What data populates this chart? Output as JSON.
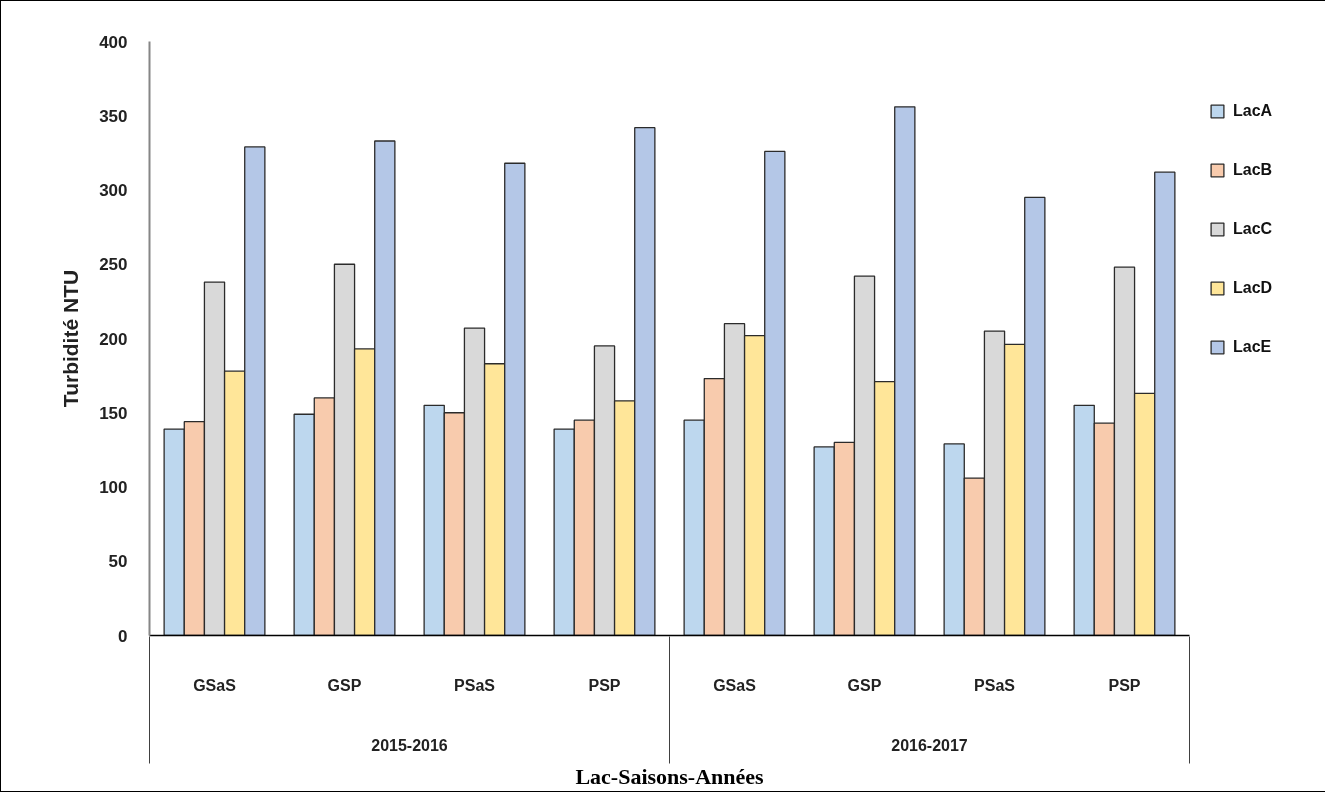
{
  "chart_data": {
    "type": "bar",
    "xlabel": "Lac-Saisons-Années",
    "ylabel": "Turbidité NTU",
    "categories": [
      "GSaS",
      "GSP",
      "PSaS",
      "PSP",
      "GSaS",
      "GSP",
      "PSaS",
      "PSP"
    ],
    "annotations": [
      "2015-2016",
      "2016-2017"
    ],
    "series": [
      {
        "name": "LacA",
        "color": "#bdd7ee",
        "values": [
          139,
          149,
          155,
          139,
          145,
          127,
          129,
          155
        ]
      },
      {
        "name": "LacB",
        "color": "#f8cbad",
        "values": [
          144,
          160,
          150,
          145,
          173,
          130,
          106,
          143
        ]
      },
      {
        "name": "LacC",
        "color": "#d9d9d9",
        "values": [
          238,
          250,
          207,
          195,
          210,
          242,
          205,
          248
        ]
      },
      {
        "name": "LacD",
        "color": "#ffe699",
        "values": [
          178,
          193,
          183,
          158,
          202,
          171,
          196,
          163
        ]
      },
      {
        "name": "LacE",
        "color": "#b4c7e7",
        "values": [
          329,
          333,
          318,
          342,
          326,
          356,
          295,
          312
        ]
      }
    ],
    "ylim": [
      0,
      400
    ],
    "yticks": [
      0,
      50,
      100,
      150,
      200,
      250,
      300,
      350,
      400
    ],
    "grid": false,
    "legend": "right"
  }
}
